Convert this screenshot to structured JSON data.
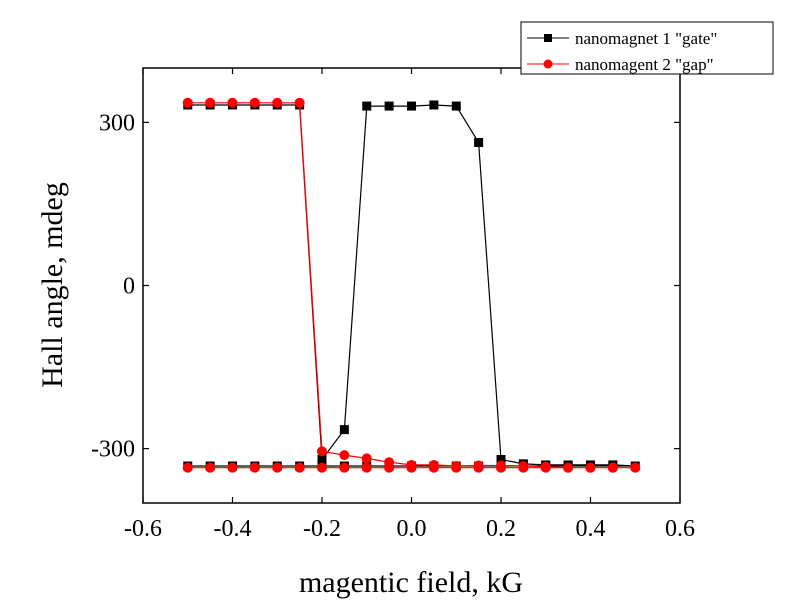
{
  "chart_data": {
    "type": "line",
    "xlabel": "magentic field, kG",
    "ylabel": "Hall angle, mdeg",
    "xlim": [
      -0.6,
      0.6
    ],
    "ylim": [
      -400,
      400
    ],
    "x_ticks": [
      -0.6,
      -0.4,
      -0.2,
      0.0,
      0.2,
      0.4,
      0.6
    ],
    "x_tick_labels": [
      "-0.6",
      "-0.4",
      "-0.2",
      "0.0",
      "0.2",
      "0.4",
      "0.6"
    ],
    "y_ticks": [
      300,
      0,
      -300
    ],
    "y_tick_labels": [
      "300",
      "0",
      "-300"
    ],
    "grid": false,
    "legend_position": "top-right",
    "series": [
      {
        "name": "nanomagnet 1 \"gate\"",
        "color": "#000000",
        "marker": "square",
        "x": [
          -0.5,
          -0.45,
          -0.4,
          -0.35,
          -0.3,
          -0.25,
          -0.2,
          -0.15,
          -0.1,
          -0.05,
          0.0,
          0.05,
          0.1,
          0.15,
          0.2,
          0.25,
          0.3,
          0.35,
          0.4,
          0.45,
          0.5,
          0.45,
          0.4,
          0.35,
          0.3,
          0.25,
          0.2,
          0.15,
          0.1,
          0.05,
          0.0,
          -0.05,
          -0.1,
          -0.15,
          -0.2,
          -0.25,
          -0.3,
          -0.35,
          -0.4,
          -0.45,
          -0.5
        ],
        "y": [
          -332,
          -332,
          -332,
          -332,
          -332,
          -332,
          -332,
          -332,
          -332,
          -332,
          -332,
          -332,
          -332,
          -332,
          -332,
          -332,
          -332,
          -332,
          -332,
          -332,
          -332,
          -330,
          -330,
          -330,
          -330,
          -328,
          -320,
          263,
          330,
          332,
          330,
          330,
          330,
          -265,
          -320,
          332,
          332,
          332,
          332,
          332,
          332
        ]
      },
      {
        "name": "nanomagent 2 \"gap\"",
        "color": "#ff0000",
        "marker": "circle",
        "x": [
          -0.5,
          -0.45,
          -0.4,
          -0.35,
          -0.3,
          -0.25,
          -0.2,
          -0.15,
          -0.1,
          -0.05,
          0.0,
          0.05,
          0.1,
          0.15,
          0.2,
          0.25,
          0.3,
          0.35,
          0.4,
          0.45,
          0.5,
          0.45,
          0.4,
          0.35,
          0.3,
          0.25,
          0.2,
          0.15,
          0.1,
          0.05,
          0.0,
          -0.05,
          -0.1,
          -0.15,
          -0.2,
          -0.25,
          -0.3,
          -0.35,
          -0.4,
          -0.45,
          -0.5
        ],
        "y": [
          -335,
          -335,
          -335,
          -335,
          -335,
          -335,
          -335,
          -335,
          -335,
          -335,
          -335,
          -335,
          -335,
          -335,
          -335,
          -335,
          -335,
          -335,
          -335,
          -335,
          -335,
          -335,
          -335,
          -335,
          -333,
          -332,
          -331,
          -331,
          -332,
          -330,
          -330,
          -325,
          -318,
          -312,
          -305,
          336,
          336,
          336,
          336,
          336,
          336
        ]
      }
    ]
  }
}
